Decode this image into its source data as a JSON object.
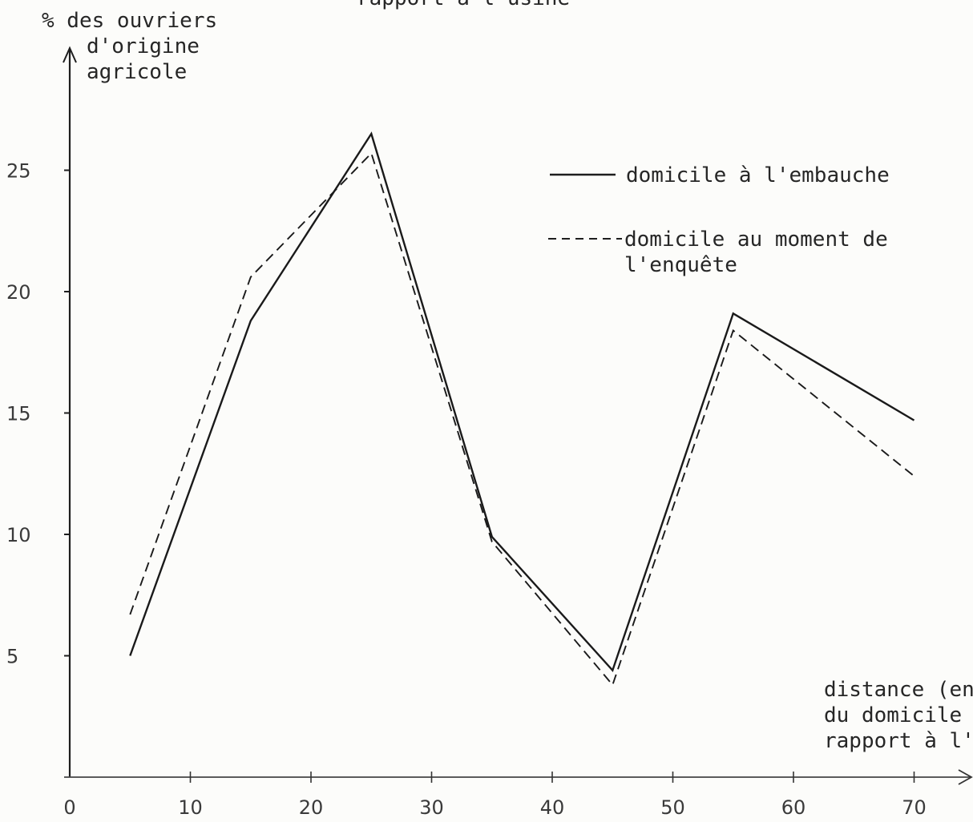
{
  "chart_data": {
    "type": "line",
    "title": "rapport à l'usine",
    "ylabel_lines": [
      "% des ouvriers",
      "d'origine",
      "agricole"
    ],
    "xlabel_lines": [
      "distance (en",
      "du domicile",
      "rapport à l'"
    ],
    "xlim": [
      0,
      75
    ],
    "ylim": [
      0,
      28
    ],
    "xticks": [
      0,
      10,
      20,
      30,
      40,
      50,
      60,
      70
    ],
    "xtick_labels": [
      "0",
      "10",
      "20",
      "30",
      "40",
      "50",
      "60",
      "70"
    ],
    "yticks": [
      5,
      10,
      15,
      20,
      25
    ],
    "ytick_labels": [
      "5",
      "10",
      "15",
      "20",
      "25"
    ],
    "grid": false,
    "legend_position": "top-right",
    "series": [
      {
        "name": "domicile à l'embauche",
        "style": "solid",
        "x": [
          5,
          15,
          25,
          35,
          45,
          55,
          70
        ],
        "y": [
          5,
          18.8,
          26.5,
          9.9,
          4.4,
          19.1,
          14.7
        ]
      },
      {
        "name": "domicile au moment de l'enquête",
        "legend_lines": [
          "domicile au moment de",
          "l'enquête"
        ],
        "style": "dashed",
        "x": [
          5,
          15,
          25,
          35,
          45,
          55,
          70
        ],
        "y": [
          6.7,
          20.6,
          25.7,
          9.7,
          3.8,
          18.4,
          12.4
        ]
      }
    ]
  }
}
